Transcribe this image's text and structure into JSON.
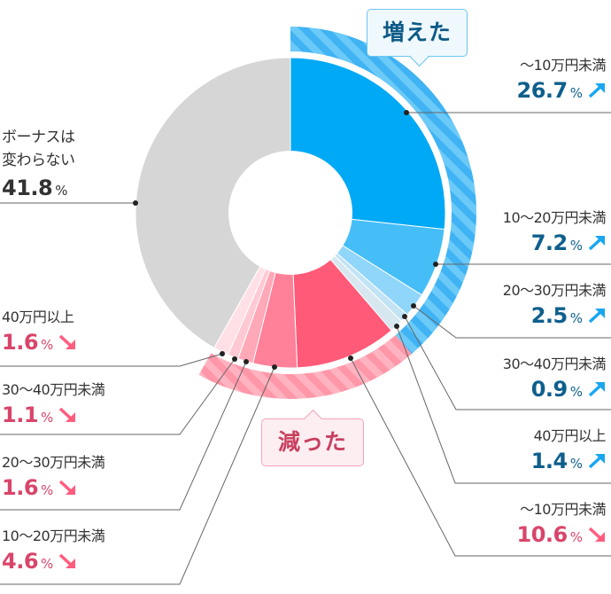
{
  "chart_data": {
    "type": "pie",
    "subtype": "donut",
    "title": "",
    "unit": "%",
    "start_angle_deg": 0,
    "direction": "clockwise",
    "groups": [
      {
        "name": "増えた",
        "trend": "up",
        "total": 38.7
      },
      {
        "name": "減った",
        "trend": "down",
        "total": 19.5
      },
      {
        "name": "ボーナスは変わらない",
        "trend": "none",
        "total": 41.8
      }
    ],
    "slices": [
      {
        "group": "増えた",
        "label": "〜10万円未満",
        "value": 26.7,
        "color": "#00a9f5"
      },
      {
        "group": "増えた",
        "label": "10〜20万円未満",
        "value": 7.2,
        "color": "#45bef7"
      },
      {
        "group": "増えた",
        "label": "20〜30万円未満",
        "value": 2.5,
        "color": "#90d5fa"
      },
      {
        "group": "増えた",
        "label": "30〜40万円未満",
        "value": 0.9,
        "color": "#c2e3f4"
      },
      {
        "group": "増えた",
        "label": "40万円以上",
        "value": 1.4,
        "color": "#d6e7f0"
      },
      {
        "group": "減った",
        "label": "〜10万円未満",
        "value": 10.6,
        "color": "#ff5a78"
      },
      {
        "group": "減った",
        "label": "10〜20万円未満",
        "value": 4.6,
        "color": "#ff8099"
      },
      {
        "group": "減った",
        "label": "20〜30万円未満",
        "value": 1.6,
        "color": "#ffa8b8"
      },
      {
        "group": "減った",
        "label": "30〜40万円未満",
        "value": 1.1,
        "color": "#ffc9d3"
      },
      {
        "group": "減った",
        "label": "40万円以上",
        "value": 1.6,
        "color": "#ffe0e6"
      },
      {
        "group": "変わらない",
        "label": "ボーナスは変わらない",
        "value": 41.8,
        "color": "#d6d6d6"
      }
    ]
  },
  "colors": {
    "increase_band": "#3fb3f3",
    "increase_band_stripe": "#6ccaf8",
    "decrease_band": "#ff97a9",
    "decrease_band_stripe": "#ffb3c0",
    "increase_text": "#0e5f8c",
    "decrease_text": "#d9456a",
    "arrow_up": "#1aa7f0",
    "arrow_down": "#ff5d7f",
    "leader_line": "#666666"
  },
  "bubbles": {
    "increase": "増えた",
    "decrease": "減った"
  },
  "labels": {
    "unchanged": {
      "line1": "ボーナスは",
      "line2": "変わらない",
      "value": "41.8",
      "pct": "%"
    },
    "inc_0_10": {
      "name": "〜10万円未満",
      "value": "26.7",
      "pct": "%"
    },
    "inc_10_20": {
      "name": "10〜20万円未満",
      "value": "7.2",
      "pct": "%"
    },
    "inc_20_30": {
      "name": "20〜30万円未満",
      "value": "2.5",
      "pct": "%"
    },
    "inc_30_40": {
      "name": "30〜40万円未満",
      "value": "0.9",
      "pct": "%"
    },
    "inc_40": {
      "name": "40万円以上",
      "value": "1.4",
      "pct": "%"
    },
    "dec_0_10": {
      "name": "〜10万円未満",
      "value": "10.6",
      "pct": "%"
    },
    "dec_10_20": {
      "name": "10〜20万円未満",
      "value": "4.6",
      "pct": "%"
    },
    "dec_20_30": {
      "name": "20〜30万円未満",
      "value": "1.6",
      "pct": "%"
    },
    "dec_30_40": {
      "name": "30〜40万円未満",
      "value": "1.1",
      "pct": "%"
    },
    "dec_40": {
      "name": "40万円以上",
      "value": "1.6",
      "pct": "%"
    }
  }
}
